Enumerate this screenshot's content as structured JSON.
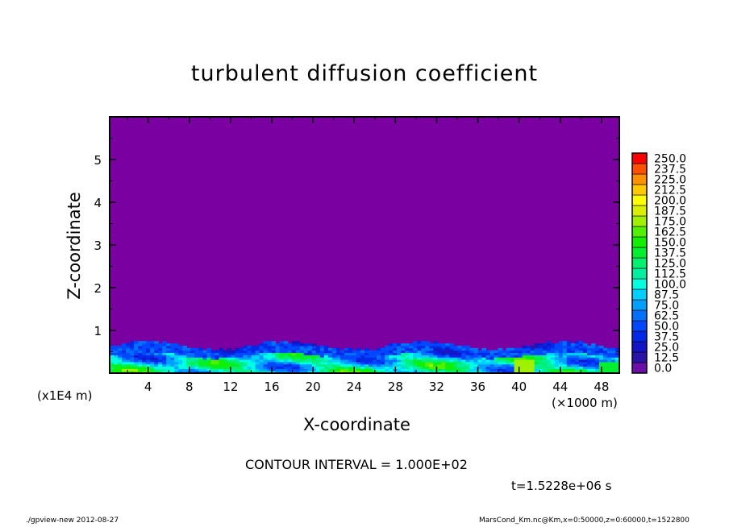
{
  "chart_data": {
    "type": "heatmap",
    "title": "turbulent diffusion coefficient",
    "xlabel": "X-coordinate",
    "ylabel": "Z-coordinate",
    "x_unit": "(×1000 m)",
    "y_unit": "(x1E4 m)",
    "xlim": [
      0,
      50
    ],
    "ylim": [
      0,
      6
    ],
    "x_ticks": [
      "4",
      "8",
      "12",
      "16",
      "20",
      "24",
      "28",
      "32",
      "36",
      "40",
      "44",
      "48"
    ],
    "y_ticks": [
      "1",
      "2",
      "3",
      "4",
      "5"
    ],
    "colorbar": {
      "levels": [
        "0.0",
        "12.5",
        "25.0",
        "37.5",
        "50.0",
        "62.5",
        "75.0",
        "87.5",
        "100.0",
        "112.5",
        "125.0",
        "137.5",
        "150.0",
        "162.5",
        "175.0",
        "187.5",
        "200.0",
        "212.5",
        "225.0",
        "237.5",
        "250.0"
      ],
      "colors": [
        "#6a10a8",
        "#2a14a8",
        "#1414c8",
        "#0028e8",
        "#0048ff",
        "#0070ff",
        "#00a0ff",
        "#00d0ff",
        "#00ffe0",
        "#00f0a0",
        "#00f070",
        "#00f030",
        "#10f000",
        "#50f000",
        "#a0f000",
        "#d8f000",
        "#ffff00",
        "#ffc800",
        "#ff9000",
        "#ff5000",
        "#ff0000"
      ],
      "top_colors": [
        "#ff3030",
        "#ff7070"
      ]
    },
    "background_color": "#7b00a2",
    "contour_interval": "CONTOUR INTERVAL = 1.000E+02",
    "time": "t=1.5228e+06 s"
  },
  "footer": {
    "left": "./gpview-new   2012-08-27",
    "right": "MarsCond_Km.nc@Km,x=0:50000,z=0:60000,t=1522800"
  }
}
